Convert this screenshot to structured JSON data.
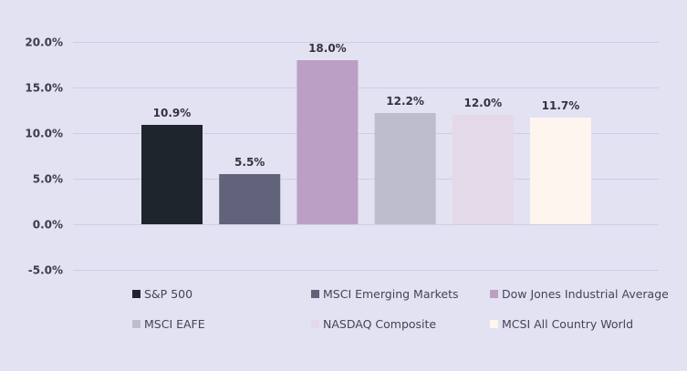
{
  "chart_data": {
    "type": "bar",
    "title": "",
    "xlabel": "",
    "ylabel": "",
    "ylim": [
      -0.05,
      0.2
    ],
    "yticks": [
      -0.05,
      0.0,
      0.05,
      0.1,
      0.15,
      0.2
    ],
    "ytick_labels": [
      "-5.0%",
      "0.0%",
      "5.0%",
      "10.0%",
      "15.0%",
      "20.0%"
    ],
    "grid": true,
    "legend_position": "bottom",
    "series": [
      {
        "name": "S&P 500",
        "value": 0.109,
        "label": "10.9%",
        "color": "#1e252d"
      },
      {
        "name": "MSCI Emerging Markets",
        "value": 0.055,
        "label": "5.5%",
        "color": "#60637a"
      },
      {
        "name": "Dow Jones Industrial Average",
        "value": 0.18,
        "label": "18.0%",
        "color": "#bc9fc4"
      },
      {
        "name": "MSCI EAFE",
        "value": 0.122,
        "label": "12.2%",
        "color": "#bebdcc"
      },
      {
        "name": "NASDAQ Composite",
        "value": 0.12,
        "label": "12.0%",
        "color": "#e3d9e8"
      },
      {
        "name": "MCSI All Country World",
        "value": 0.117,
        "label": "11.7%",
        "color": "#fdf5ee"
      }
    ]
  }
}
